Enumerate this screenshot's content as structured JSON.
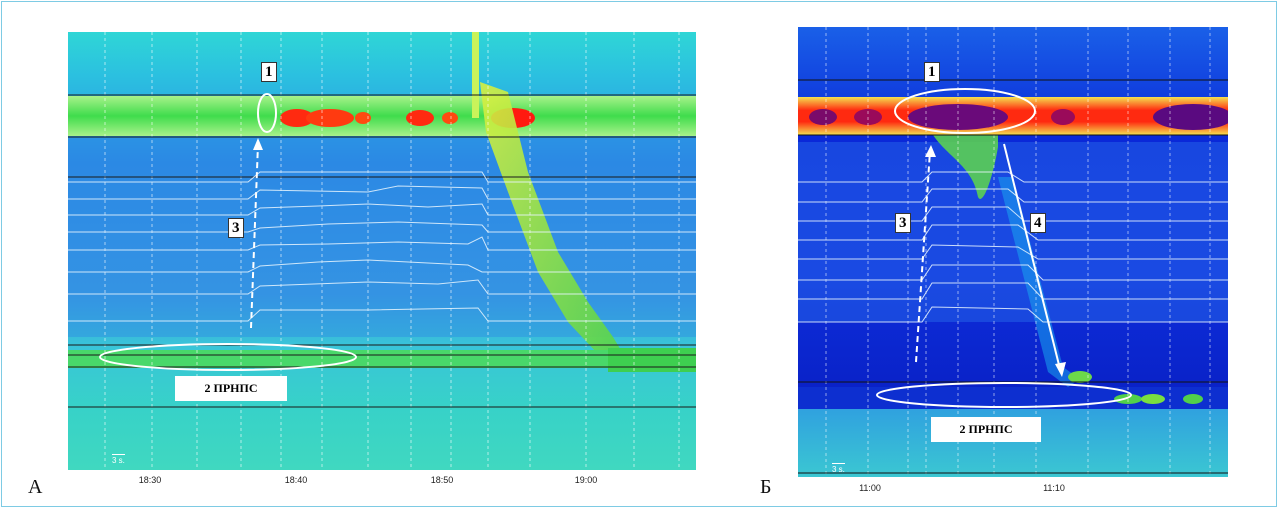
{
  "panel_a": {
    "letter": "А",
    "time_ticks": [
      "18:30",
      "18:40",
      "18:50",
      "19:00"
    ],
    "scale_label": "3 s.",
    "markers": [
      "1",
      "3"
    ],
    "region_label": "2 ПРНПС"
  },
  "panel_b": {
    "letter": "Б",
    "time_ticks": [
      "11:00",
      "11:10"
    ],
    "scale_label": "3 s.",
    "markers": [
      "1",
      "3",
      "4"
    ],
    "region_label": "2 ПРНПС"
  },
  "colors": {
    "background_field": "#2f8fe0",
    "deep_field": "#0a1fd0",
    "band_green": "#5cdc4c",
    "band_red": "#ff1a10",
    "band_core": "#6a0a7a"
  }
}
